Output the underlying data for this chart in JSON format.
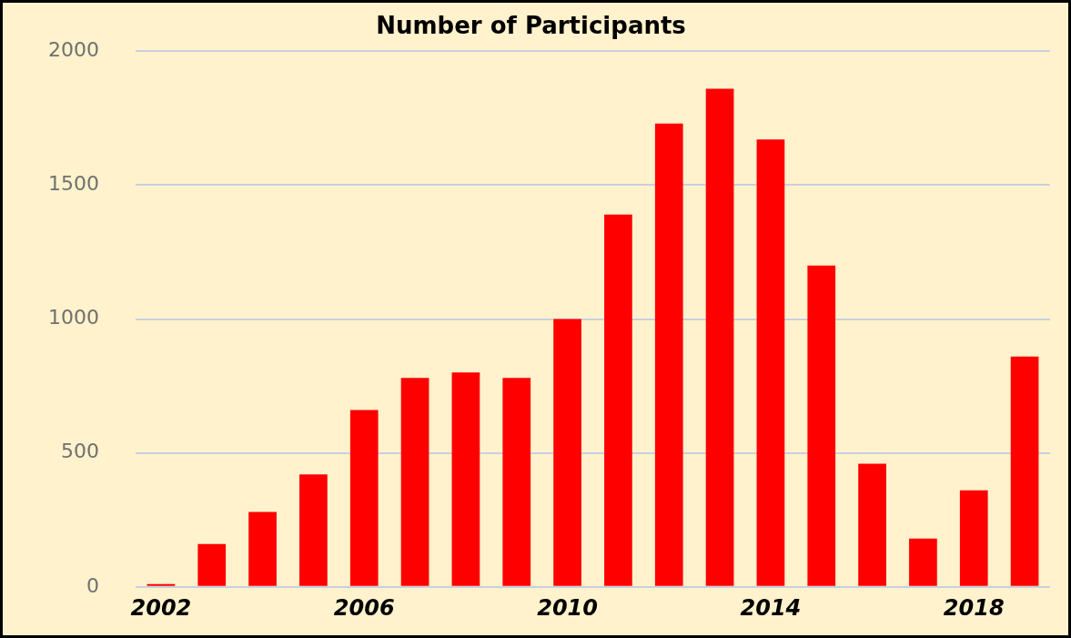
{
  "chart_data": {
    "type": "bar",
    "title": "Number of Participants",
    "categories": [
      "2002",
      null,
      null,
      null,
      "2006",
      null,
      null,
      null,
      "2010",
      null,
      null,
      null,
      "2014",
      null,
      null,
      null,
      "2018",
      null
    ],
    "values": [
      10,
      160,
      280,
      420,
      660,
      780,
      800,
      780,
      1000,
      1390,
      1730,
      1860,
      1670,
      1200,
      460,
      180,
      360,
      860
    ],
    "color": "#ff0000",
    "ylim": [
      0,
      2000
    ],
    "yticks": [
      0,
      500,
      1000,
      1500,
      2000
    ],
    "grid": "y",
    "legend": false
  }
}
